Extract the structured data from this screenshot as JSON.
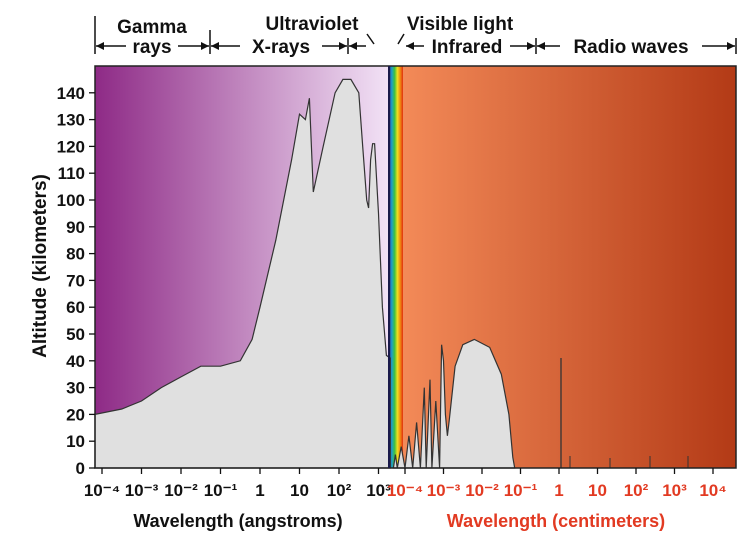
{
  "chart_data": {
    "type": "area",
    "ylabel": "Altitude (kilometers)",
    "y_ticks": [
      "0",
      "10",
      "20",
      "30",
      "40",
      "50",
      "60",
      "70",
      "80",
      "90",
      "100",
      "110",
      "120",
      "130",
      "140"
    ],
    "ylim": [
      0,
      150
    ],
    "left_axis": {
      "xlabel": "Wavelength (angstroms)",
      "tick_labels": [
        "10⁻⁴",
        "10⁻³",
        "10⁻²",
        "10⁻¹",
        "1",
        "10",
        "10²",
        "10³"
      ],
      "tick_log_values": [
        -4,
        -3,
        -2,
        -1,
        0,
        1,
        2,
        3
      ]
    },
    "right_axis": {
      "xlabel": "Wavelength (centimeters)",
      "tick_labels": [
        "10⁻⁴",
        "10⁻³",
        "10⁻²",
        "10⁻¹",
        "1",
        "10",
        "10²",
        "10³",
        "10⁴"
      ],
      "tick_log_values": [
        -4,
        -3,
        -2,
        -1,
        0,
        1,
        2,
        3,
        4
      ]
    },
    "bands": [
      {
        "label": "Gamma",
        "label2": "rays"
      },
      {
        "label": "X-rays"
      },
      {
        "label": "Ultraviolet"
      },
      {
        "label": "Visible light"
      },
      {
        "label": "Infrared"
      },
      {
        "label": "Radio waves"
      }
    ],
    "colors": {
      "short_wave_bg_dark": "#8e2a86",
      "short_wave_bg_light": "#f2e2f6",
      "long_wave_bg_light": "#f38a58",
      "long_wave_bg_dark": "#b33a16",
      "absorption_fill": "#e0e0e0",
      "right_label_color": "#e23a22"
    },
    "series": [
      {
        "axis": "left_angstrom_log10",
        "points": [
          [
            -4,
            20
          ],
          [
            -3.5,
            22
          ],
          [
            -3,
            25
          ],
          [
            -2.5,
            30
          ],
          [
            -2,
            34
          ],
          [
            -1.5,
            38
          ],
          [
            -1,
            38
          ],
          [
            -0.5,
            40
          ],
          [
            -0.2,
            48
          ],
          [
            0,
            60
          ],
          [
            0.4,
            85
          ],
          [
            0.8,
            115
          ],
          [
            1,
            132
          ],
          [
            1.15,
            130
          ],
          [
            1.25,
            138
          ],
          [
            1.35,
            103
          ],
          [
            1.6,
            120
          ],
          [
            1.9,
            140
          ],
          [
            2.1,
            145
          ],
          [
            2.3,
            145
          ],
          [
            2.5,
            140
          ],
          [
            2.6,
            120
          ],
          [
            2.7,
            100
          ],
          [
            2.75,
            97
          ],
          [
            2.8,
            115
          ],
          [
            2.85,
            121
          ],
          [
            2.9,
            121
          ],
          [
            3.0,
            95
          ],
          [
            3.1,
            60
          ],
          [
            3.2,
            42
          ],
          [
            3.3,
            41
          ]
        ]
      },
      {
        "axis": "right_cm_log10",
        "points": [
          [
            -4.3,
            0
          ],
          [
            -4.25,
            5
          ],
          [
            -4.2,
            0
          ],
          [
            -4.1,
            8
          ],
          [
            -4,
            0
          ],
          [
            -3.9,
            12
          ],
          [
            -3.8,
            0
          ],
          [
            -3.7,
            17
          ],
          [
            -3.6,
            0
          ],
          [
            -3.5,
            30
          ],
          [
            -3.45,
            0
          ],
          [
            -3.35,
            33
          ],
          [
            -3.3,
            0
          ],
          [
            -3.2,
            25
          ],
          [
            -3.1,
            0
          ],
          [
            -3.05,
            46
          ],
          [
            -3.0,
            40
          ],
          [
            -2.95,
            20
          ],
          [
            -2.9,
            12
          ],
          [
            -2.85,
            18
          ],
          [
            -2.7,
            38
          ],
          [
            -2.5,
            46
          ],
          [
            -2.2,
            48
          ],
          [
            -1.8,
            45
          ],
          [
            -1.5,
            35
          ],
          [
            -1.3,
            20
          ],
          [
            -1.2,
            4
          ],
          [
            -1.15,
            0
          ]
        ]
      }
    ]
  }
}
